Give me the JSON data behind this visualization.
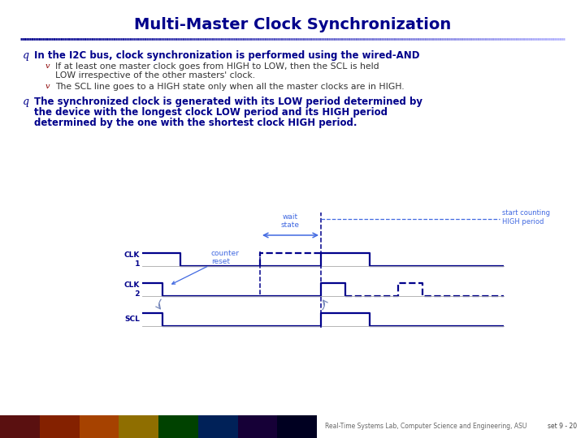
{
  "title": "Multi-Master Clock Synchronization",
  "title_color": "#00008B",
  "title_fontsize": 14,
  "bg_color": "#FFFFFF",
  "dark_blue": "#00008B",
  "signal_color": "#00008B",
  "annotation_color": "#4169E1",
  "footer_text": "Real-Time Systems Lab, Computer Science and Engineering, ASU",
  "footer_right": "set 9 - 20",
  "bullet1": "In the I2C bus, clock synchronization is performed using the wired-AND",
  "sub1a_1": "If at least one master clock goes from HIGH to LOW, then the SCL is held",
  "sub1a_2": "LOW irrespective of the other masters' clock.",
  "sub1b": "The SCL line goes to a HIGH state only when all the master clocks are in HIGH.",
  "bullet2_1": "The synchronized clock is generated with its LOW period determined by",
  "bullet2_2": "the device with the longest clock LOW period and its HIGH period",
  "bullet2_3": "determined by the one with the shortest clock HIGH period."
}
